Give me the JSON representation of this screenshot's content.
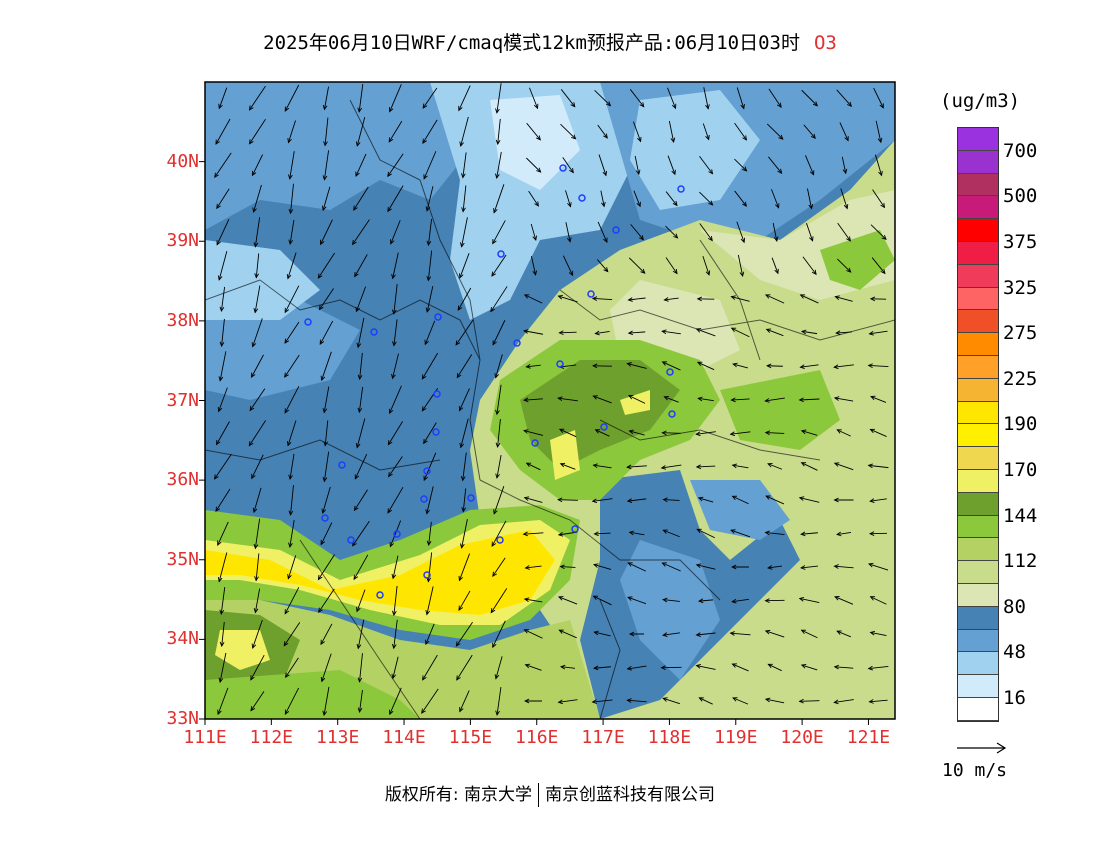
{
  "title": {
    "main": "2025年06月10日WRF/cmaq模式12km预报产品:06月10日03时",
    "species": "O3"
  },
  "map": {
    "lat_labels": [
      "40N",
      "39N",
      "38N",
      "37N",
      "36N",
      "35N",
      "34N",
      "33N"
    ],
    "lat_values": [
      40,
      39,
      38,
      37,
      36,
      35,
      34,
      33
    ],
    "lon_labels": [
      "111E",
      "112E",
      "113E",
      "114E",
      "115E",
      "116E",
      "117E",
      "118E",
      "119E",
      "120E",
      "121E"
    ],
    "lon_values": [
      111,
      112,
      113,
      114,
      115,
      116,
      117,
      118,
      119,
      120,
      121
    ],
    "lon_range": [
      111,
      121.4
    ],
    "lat_range": [
      33,
      41
    ]
  },
  "legend": {
    "unit": "(ug/m3)",
    "colors": [
      "#9a32e0",
      "#9a32d0",
      "#b03060",
      "#c81a78",
      "#ff0000",
      "#f01e46",
      "#f03c5a",
      "#ff6464",
      "#f05028",
      "#ff8c00",
      "#ffa028",
      "#f5b432",
      "#ffe600",
      "#fff000",
      "#f0d750",
      "#f0f064",
      "#6ea02d",
      "#8cc83c",
      "#b4d264",
      "#c8dc8c",
      "#dce6b4",
      "#4682b4",
      "#64a0d2",
      "#a0d2f0",
      "#d2ebfa",
      "#ffffff"
    ],
    "ticks": [
      "700",
      "500",
      "375",
      "325",
      "275",
      "225",
      "190",
      "170",
      "144",
      "112",
      "80",
      "48",
      "16"
    ],
    "vector_label": "10 m/s"
  },
  "footer": {
    "left": "版权所有: 南京大学",
    "right": "南京创蓝科技有限公司"
  }
}
